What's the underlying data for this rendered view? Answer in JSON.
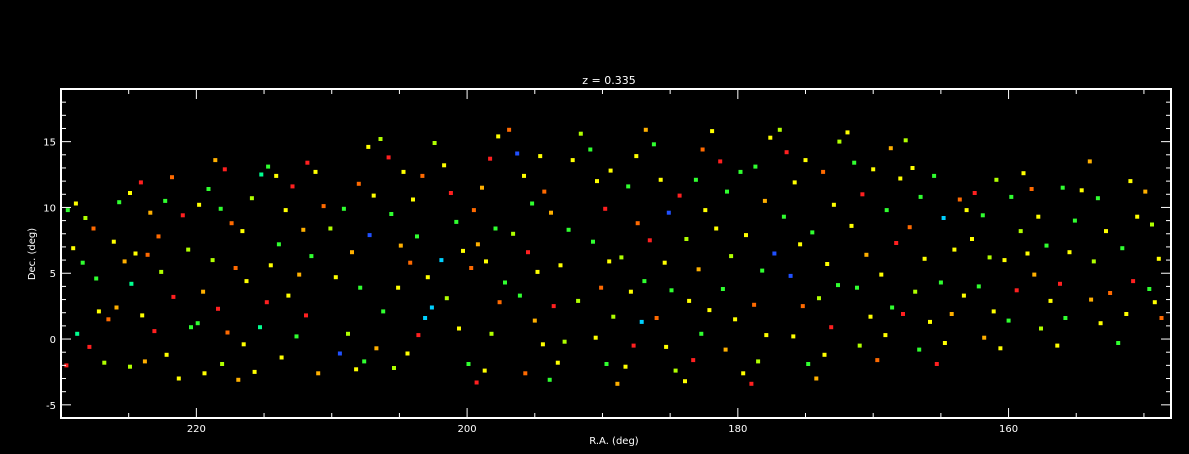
{
  "chart_data": {
    "type": "scatter",
    "title": "z = 0.335",
    "xlabel": "R.A. (deg)",
    "ylabel": "Dec. (deg)",
    "xlim": [
      230,
      148
    ],
    "ylim": [
      -6,
      19
    ],
    "x_ticks": [
      220,
      200,
      180,
      160
    ],
    "y_ticks": [
      -5,
      0,
      5,
      10,
      15
    ],
    "grid": false,
    "legend": "none",
    "colors": {
      "background": "#000000",
      "axes": "#ffffff",
      "text": "#ffffff"
    },
    "palette": [
      "#ff2020",
      "#ff6a00",
      "#ffb000",
      "#ffff00",
      "#b0ff00",
      "#30ff30",
      "#00ff90",
      "#00d0ff",
      "#2050ff",
      "#4000c0"
    ],
    "points": [
      [
        229.5,
        9.8,
        5
      ],
      [
        228.9,
        10.3,
        3
      ],
      [
        228.2,
        9.2,
        4
      ],
      [
        227.6,
        8.4,
        1
      ],
      [
        229.1,
        6.9,
        3
      ],
      [
        228.4,
        5.8,
        5
      ],
      [
        227.2,
        2.1,
        3
      ],
      [
        226.5,
        1.5,
        1
      ],
      [
        228.8,
        0.4,
        6
      ],
      [
        227.9,
        -0.6,
        0
      ],
      [
        226.8,
        -1.8,
        4
      ],
      [
        229.6,
        -2.0,
        0
      ],
      [
        225.7,
        10.4,
        5
      ],
      [
        224.9,
        11.1,
        3
      ],
      [
        224.1,
        11.9,
        0
      ],
      [
        223.4,
        9.6,
        2
      ],
      [
        222.8,
        7.8,
        1
      ],
      [
        224.5,
        6.5,
        3
      ],
      [
        225.3,
        5.9,
        2
      ],
      [
        223.6,
        6.4,
        1
      ],
      [
        222.6,
        5.1,
        4
      ],
      [
        224.8,
        4.2,
        6
      ],
      [
        225.9,
        2.4,
        2
      ],
      [
        224.0,
        1.8,
        3
      ],
      [
        223.1,
        0.6,
        0
      ],
      [
        222.2,
        -1.2,
        3
      ],
      [
        223.8,
        -1.7,
        2
      ],
      [
        224.9,
        -2.1,
        4
      ],
      [
        221.3,
        -3.0,
        3
      ],
      [
        221.8,
        12.3,
        1
      ],
      [
        222.3,
        10.5,
        5
      ],
      [
        221.0,
        9.4,
        0
      ],
      [
        220.6,
        6.8,
        4
      ],
      [
        219.8,
        10.2,
        3
      ],
      [
        219.1,
        11.4,
        5
      ],
      [
        218.6,
        13.6,
        2
      ],
      [
        217.9,
        12.9,
        0
      ],
      [
        218.2,
        9.9,
        5
      ],
      [
        217.4,
        8.8,
        1
      ],
      [
        216.6,
        8.2,
        3
      ],
      [
        215.9,
        10.7,
        4
      ],
      [
        215.2,
        12.5,
        6
      ],
      [
        214.7,
        13.1,
        5
      ],
      [
        214.1,
        12.4,
        3
      ],
      [
        218.8,
        6.0,
        4
      ],
      [
        217.1,
        5.4,
        1
      ],
      [
        216.3,
        4.4,
        3
      ],
      [
        219.5,
        3.6,
        2
      ],
      [
        218.4,
        2.3,
        0
      ],
      [
        219.9,
        1.2,
        5
      ],
      [
        217.7,
        0.5,
        1
      ],
      [
        216.5,
        -0.4,
        3
      ],
      [
        218.1,
        -1.9,
        4
      ],
      [
        219.4,
        -2.6,
        3
      ],
      [
        216.9,
        -3.1,
        2
      ],
      [
        215.7,
        -2.5,
        3
      ],
      [
        215.3,
        0.9,
        6
      ],
      [
        214.8,
        2.8,
        0
      ],
      [
        213.9,
        7.2,
        5
      ],
      [
        213.4,
        9.8,
        3
      ],
      [
        212.9,
        11.6,
        0
      ],
      [
        211.8,
        13.4,
        0
      ],
      [
        211.2,
        12.7,
        3
      ],
      [
        210.6,
        10.1,
        1
      ],
      [
        210.1,
        8.4,
        4
      ],
      [
        211.5,
        6.3,
        5
      ],
      [
        212.4,
        4.9,
        2
      ],
      [
        213.2,
        3.3,
        3
      ],
      [
        211.9,
        1.8,
        0
      ],
      [
        212.6,
        0.2,
        5
      ],
      [
        213.7,
        -1.4,
        3
      ],
      [
        211.0,
        -2.6,
        2
      ],
      [
        209.4,
        -1.1,
        8
      ],
      [
        208.8,
        0.4,
        4
      ],
      [
        208.2,
        -2.3,
        3
      ],
      [
        207.6,
        -1.7,
        5
      ],
      [
        209.7,
        4.7,
        3
      ],
      [
        208.5,
        6.6,
        2
      ],
      [
        209.1,
        9.9,
        5
      ],
      [
        208.0,
        11.8,
        1
      ],
      [
        207.3,
        14.6,
        3
      ],
      [
        206.4,
        15.2,
        4
      ],
      [
        205.8,
        13.8,
        0
      ],
      [
        206.9,
        10.9,
        3
      ],
      [
        207.2,
        7.9,
        8
      ],
      [
        205.6,
        9.5,
        5
      ],
      [
        204.9,
        7.1,
        2
      ],
      [
        204.2,
        5.8,
        1
      ],
      [
        205.1,
        3.9,
        3
      ],
      [
        206.2,
        2.1,
        5
      ],
      [
        206.7,
        -0.7,
        2
      ],
      [
        205.4,
        -2.2,
        4
      ],
      [
        204.4,
        -1.1,
        3
      ],
      [
        203.6,
        0.3,
        0
      ],
      [
        203.1,
        1.6,
        7
      ],
      [
        202.6,
        2.4,
        7
      ],
      [
        202.9,
        4.7,
        3
      ],
      [
        203.7,
        7.8,
        5
      ],
      [
        204.0,
        10.6,
        3
      ],
      [
        203.3,
        12.4,
        1
      ],
      [
        202.4,
        14.9,
        4
      ],
      [
        201.7,
        13.2,
        3
      ],
      [
        201.2,
        11.1,
        0
      ],
      [
        200.8,
        8.9,
        5
      ],
      [
        200.3,
        6.7,
        3
      ],
      [
        199.7,
        5.4,
        1
      ],
      [
        199.2,
        7.2,
        2
      ],
      [
        201.5,
        3.1,
        4
      ],
      [
        200.6,
        0.8,
        3
      ],
      [
        199.9,
        -1.9,
        5
      ],
      [
        199.3,
        -3.3,
        0
      ],
      [
        198.7,
        -2.4,
        3
      ],
      [
        198.2,
        0.4,
        4
      ],
      [
        197.6,
        2.8,
        1
      ],
      [
        198.6,
        5.9,
        3
      ],
      [
        197.9,
        8.4,
        5
      ],
      [
        198.9,
        11.5,
        2
      ],
      [
        198.3,
        13.7,
        0
      ],
      [
        197.7,
        15.4,
        3
      ],
      [
        196.9,
        15.9,
        1
      ],
      [
        196.3,
        14.1,
        8
      ],
      [
        195.8,
        12.4,
        3
      ],
      [
        195.2,
        10.3,
        5
      ],
      [
        196.6,
        8.0,
        4
      ],
      [
        195.5,
        6.6,
        0
      ],
      [
        194.8,
        5.1,
        3
      ],
      [
        196.1,
        3.3,
        5
      ],
      [
        195.0,
        1.4,
        2
      ],
      [
        194.4,
        -0.4,
        3
      ],
      [
        195.7,
        -2.6,
        1
      ],
      [
        193.9,
        -3.1,
        5
      ],
      [
        193.3,
        -1.8,
        3
      ],
      [
        192.8,
        -0.2,
        4
      ],
      [
        193.6,
        2.5,
        0
      ],
      [
        193.1,
        5.6,
        3
      ],
      [
        192.5,
        8.3,
        5
      ],
      [
        193.8,
        9.6,
        2
      ],
      [
        194.3,
        11.2,
        1
      ],
      [
        192.2,
        13.6,
        3
      ],
      [
        191.6,
        15.6,
        4
      ],
      [
        190.9,
        14.4,
        5
      ],
      [
        190.4,
        12.0,
        3
      ],
      [
        189.8,
        9.9,
        0
      ],
      [
        190.7,
        7.4,
        5
      ],
      [
        189.5,
        5.9,
        3
      ],
      [
        190.1,
        3.9,
        1
      ],
      [
        189.2,
        1.7,
        4
      ],
      [
        190.5,
        0.1,
        3
      ],
      [
        189.7,
        -1.9,
        5
      ],
      [
        188.9,
        -3.4,
        2
      ],
      [
        188.3,
        -2.1,
        3
      ],
      [
        187.7,
        -0.5,
        0
      ],
      [
        187.1,
        1.3,
        7
      ],
      [
        187.9,
        3.6,
        3
      ],
      [
        188.6,
        6.2,
        4
      ],
      [
        187.4,
        8.8,
        1
      ],
      [
        188.1,
        11.6,
        5
      ],
      [
        187.5,
        13.9,
        3
      ],
      [
        186.8,
        15.9,
        2
      ],
      [
        186.2,
        14.8,
        5
      ],
      [
        185.7,
        12.1,
        3
      ],
      [
        185.1,
        9.6,
        8
      ],
      [
        186.5,
        7.5,
        0
      ],
      [
        185.4,
        5.8,
        3
      ],
      [
        184.9,
        3.7,
        5
      ],
      [
        186.0,
        1.6,
        1
      ],
      [
        185.3,
        -0.6,
        3
      ],
      [
        184.6,
        -2.4,
        4
      ],
      [
        183.9,
        -3.2,
        3
      ],
      [
        183.3,
        -1.6,
        0
      ],
      [
        182.7,
        0.4,
        5
      ],
      [
        183.6,
        2.9,
        3
      ],
      [
        182.9,
        5.3,
        2
      ],
      [
        183.8,
        7.6,
        4
      ],
      [
        182.4,
        9.8,
        3
      ],
      [
        183.1,
        12.1,
        5
      ],
      [
        182.6,
        14.4,
        1
      ],
      [
        181.9,
        15.8,
        3
      ],
      [
        181.3,
        13.5,
        0
      ],
      [
        180.8,
        11.2,
        5
      ],
      [
        181.6,
        8.4,
        3
      ],
      [
        180.5,
        6.3,
        4
      ],
      [
        181.1,
        3.8,
        5
      ],
      [
        180.2,
        1.5,
        3
      ],
      [
        180.9,
        -0.8,
        2
      ],
      [
        179.6,
        -2.6,
        3
      ],
      [
        179.0,
        -3.4,
        0
      ],
      [
        178.5,
        -1.7,
        4
      ],
      [
        177.9,
        0.3,
        3
      ],
      [
        178.8,
        2.6,
        1
      ],
      [
        178.2,
        5.2,
        5
      ],
      [
        179.4,
        7.9,
        3
      ],
      [
        178.0,
        10.5,
        2
      ],
      [
        178.7,
        13.1,
        5
      ],
      [
        177.6,
        15.3,
        3
      ],
      [
        176.9,
        15.9,
        4
      ],
      [
        176.4,
        14.2,
        0
      ],
      [
        175.8,
        11.9,
        3
      ],
      [
        176.6,
        9.3,
        5
      ],
      [
        175.4,
        7.2,
        3
      ],
      [
        176.1,
        4.8,
        8
      ],
      [
        175.2,
        2.5,
        1
      ],
      [
        175.9,
        0.2,
        3
      ],
      [
        174.8,
        -1.9,
        5
      ],
      [
        174.2,
        -3.0,
        2
      ],
      [
        173.6,
        -1.2,
        3
      ],
      [
        173.1,
        0.9,
        0
      ],
      [
        174.0,
        3.1,
        4
      ],
      [
        173.4,
        5.7,
        3
      ],
      [
        174.5,
        8.1,
        5
      ],
      [
        172.9,
        10.2,
        3
      ],
      [
        173.7,
        12.7,
        1
      ],
      [
        172.5,
        15.0,
        4
      ],
      [
        171.9,
        15.7,
        3
      ],
      [
        171.4,
        13.4,
        5
      ],
      [
        170.8,
        11.0,
        0
      ],
      [
        171.6,
        8.6,
        3
      ],
      [
        170.5,
        6.4,
        2
      ],
      [
        171.2,
        3.9,
        5
      ],
      [
        170.2,
        1.7,
        3
      ],
      [
        171.0,
        -0.5,
        4
      ],
      [
        169.7,
        -1.6,
        1
      ],
      [
        169.1,
        0.3,
        3
      ],
      [
        168.6,
        2.4,
        5
      ],
      [
        169.4,
        4.9,
        3
      ],
      [
        168.3,
        7.3,
        0
      ],
      [
        169.0,
        9.8,
        5
      ],
      [
        168.0,
        12.2,
        3
      ],
      [
        168.7,
        14.5,
        2
      ],
      [
        167.6,
        15.1,
        4
      ],
      [
        167.1,
        13.0,
        3
      ],
      [
        166.5,
        10.8,
        5
      ],
      [
        167.3,
        8.5,
        1
      ],
      [
        166.2,
        6.1,
        3
      ],
      [
        166.9,
        3.6,
        4
      ],
      [
        165.8,
        1.3,
        3
      ],
      [
        166.6,
        -0.8,
        5
      ],
      [
        165.3,
        -1.9,
        0
      ],
      [
        164.7,
        -0.3,
        3
      ],
      [
        164.2,
        1.9,
        2
      ],
      [
        165.0,
        4.3,
        5
      ],
      [
        164.0,
        6.8,
        3
      ],
      [
        164.8,
        9.2,
        7
      ],
      [
        163.6,
        10.6,
        1
      ],
      [
        163.1,
        9.8,
        3
      ],
      [
        162.5,
        11.1,
        0
      ],
      [
        161.9,
        9.4,
        5
      ],
      [
        162.7,
        7.6,
        3
      ],
      [
        161.4,
        6.2,
        4
      ],
      [
        162.2,
        4.0,
        5
      ],
      [
        161.1,
        2.1,
        3
      ],
      [
        161.8,
        0.1,
        2
      ],
      [
        160.6,
        -0.7,
        3
      ],
      [
        160.0,
        1.4,
        5
      ],
      [
        159.4,
        3.7,
        0
      ],
      [
        160.3,
        6.0,
        3
      ],
      [
        159.1,
        8.2,
        4
      ],
      [
        159.8,
        10.8,
        5
      ],
      [
        158.9,
        12.6,
        3
      ],
      [
        158.3,
        11.4,
        1
      ],
      [
        157.8,
        9.3,
        3
      ],
      [
        157.2,
        7.1,
        5
      ],
      [
        158.1,
        4.9,
        2
      ],
      [
        156.9,
        2.9,
        3
      ],
      [
        157.6,
        0.8,
        4
      ],
      [
        156.4,
        -0.5,
        3
      ],
      [
        155.8,
        1.6,
        5
      ],
      [
        156.2,
        4.2,
        0
      ],
      [
        155.5,
        6.6,
        3
      ],
      [
        155.1,
        9.0,
        5
      ],
      [
        154.6,
        11.3,
        3
      ],
      [
        154.0,
        13.5,
        2
      ],
      [
        153.4,
        10.7,
        5
      ],
      [
        152.8,
        8.2,
        3
      ],
      [
        153.7,
        5.9,
        4
      ],
      [
        152.5,
        3.5,
        1
      ],
      [
        153.2,
        1.2,
        3
      ],
      [
        151.9,
        -0.3,
        5
      ],
      [
        151.3,
        1.9,
        3
      ],
      [
        150.8,
        4.4,
        0
      ],
      [
        151.6,
        6.9,
        5
      ],
      [
        150.5,
        9.3,
        3
      ],
      [
        149.9,
        11.2,
        2
      ],
      [
        149.4,
        8.7,
        4
      ],
      [
        148.9,
        6.1,
        3
      ],
      [
        149.6,
        3.8,
        5
      ],
      [
        148.7,
        1.6,
        1
      ],
      [
        149.2,
        2.8,
        3
      ],
      [
        227.4,
        4.6,
        5
      ],
      [
        226.1,
        7.4,
        3
      ],
      [
        221.7,
        3.2,
        0
      ],
      [
        220.4,
        0.9,
        5
      ],
      [
        214.5,
        5.6,
        3
      ],
      [
        212.1,
        8.3,
        2
      ],
      [
        207.9,
        3.9,
        5
      ],
      [
        204.7,
        12.7,
        3
      ],
      [
        201.9,
        6.0,
        7
      ],
      [
        199.5,
        9.8,
        1
      ],
      [
        197.2,
        4.3,
        5
      ],
      [
        194.6,
        13.9,
        3
      ],
      [
        191.8,
        2.9,
        4
      ],
      [
        189.4,
        12.8,
        3
      ],
      [
        186.9,
        4.4,
        5
      ],
      [
        184.3,
        10.9,
        0
      ],
      [
        182.1,
        2.2,
        3
      ],
      [
        179.8,
        12.7,
        5
      ],
      [
        177.3,
        6.5,
        8
      ],
      [
        175.0,
        13.6,
        3
      ],
      [
        172.6,
        4.1,
        5
      ],
      [
        170.0,
        12.9,
        3
      ],
      [
        167.8,
        1.9,
        0
      ],
      [
        165.5,
        12.4,
        5
      ],
      [
        163.3,
        3.3,
        3
      ],
      [
        160.9,
        12.1,
        4
      ],
      [
        158.6,
        6.5,
        3
      ],
      [
        156.0,
        11.5,
        5
      ],
      [
        153.9,
        3.0,
        2
      ],
      [
        151.0,
        12.0,
        3
      ]
    ]
  }
}
